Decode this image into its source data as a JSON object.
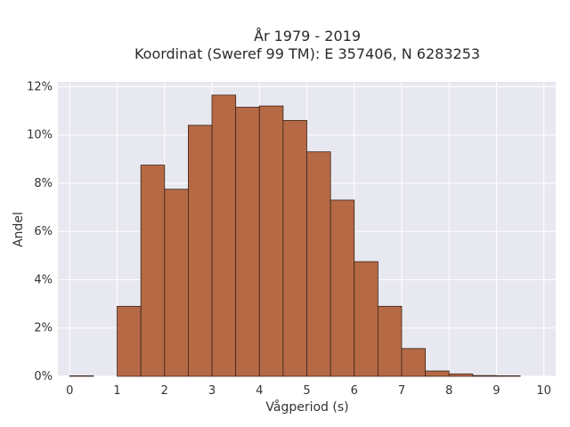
{
  "chart_data": {
    "type": "bar",
    "title_lines": [
      "År 1979 - 2019",
      "Koordinat (Sweref 99 TM): E 357406, N 6283253"
    ],
    "xlabel": "Vågperiod (s)",
    "ylabel": "Andel",
    "xlim": [
      -0.25,
      10.25
    ],
    "ylim": [
      0,
      12.2
    ],
    "x_ticks": [
      0,
      1,
      2,
      3,
      4,
      5,
      6,
      7,
      8,
      9,
      10
    ],
    "y_ticks": [
      0,
      2,
      4,
      6,
      8,
      10,
      12
    ],
    "y_tick_suffix": "%",
    "bin_width": 0.5,
    "bins": [
      {
        "start": 0.0,
        "value": 0.02
      },
      {
        "start": 0.5,
        "value": 0.0
      },
      {
        "start": 1.0,
        "value": 2.9
      },
      {
        "start": 1.5,
        "value": 8.75
      },
      {
        "start": 2.0,
        "value": 7.75
      },
      {
        "start": 2.5,
        "value": 10.4
      },
      {
        "start": 3.0,
        "value": 11.65
      },
      {
        "start": 3.5,
        "value": 11.15
      },
      {
        "start": 4.0,
        "value": 11.2
      },
      {
        "start": 4.5,
        "value": 10.6
      },
      {
        "start": 5.0,
        "value": 9.3
      },
      {
        "start": 5.5,
        "value": 7.3
      },
      {
        "start": 6.0,
        "value": 4.75
      },
      {
        "start": 6.5,
        "value": 2.9
      },
      {
        "start": 7.0,
        "value": 1.15
      },
      {
        "start": 7.5,
        "value": 0.22
      },
      {
        "start": 8.0,
        "value": 0.1
      },
      {
        "start": 8.5,
        "value": 0.03
      },
      {
        "start": 9.0,
        "value": 0.02
      },
      {
        "start": 9.5,
        "value": 0.0
      }
    ],
    "grid": true,
    "bar_color": "#b56a45",
    "bar_edge_color": "#3a2318",
    "plot_background": "#e8e8f0",
    "grid_color": "#ffffff"
  }
}
